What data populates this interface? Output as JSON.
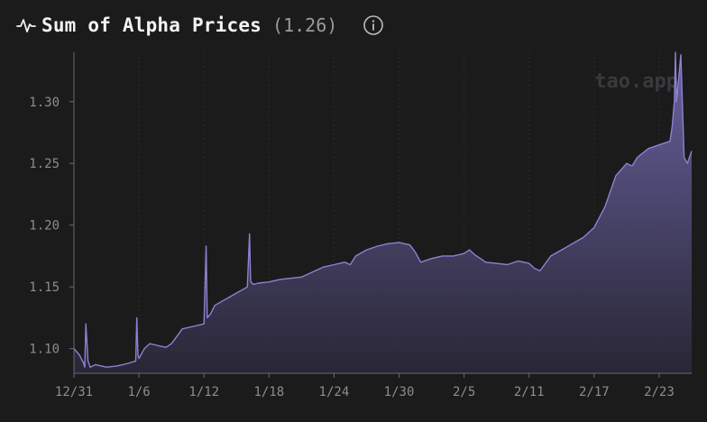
{
  "header": {
    "title": "Sum of Alpha Prices",
    "current_value": "(1.26)"
  },
  "watermark": "tao.app",
  "colors": {
    "background": "#1b1b1c",
    "line": "#8c82d2",
    "area_top": "#6e66a8",
    "area_bottom": "#2a2838",
    "axis_text": "#8d8d92",
    "grid": "#2c2c2f"
  },
  "chart_data": {
    "type": "area",
    "title": "Sum of Alpha Prices",
    "xlabel": "",
    "ylabel": "",
    "x_tick_labels": [
      "12/31",
      "1/6",
      "1/12",
      "1/18",
      "1/24",
      "1/30",
      "2/5",
      "2/11",
      "2/17",
      "2/23"
    ],
    "y_tick_labels": [
      "1.10",
      "1.15",
      "1.20",
      "1.25",
      "1.30"
    ],
    "y_ticks": [
      1.1,
      1.15,
      1.2,
      1.25,
      1.3
    ],
    "ylim": [
      1.08,
      1.34
    ],
    "xlim_days": [
      0,
      57
    ],
    "grid": "vertical dotted",
    "series": [
      {
        "x_days": [
          0,
          0.5,
          0.9,
          1.0,
          1.1,
          1.3,
          1.5,
          2,
          3,
          4,
          5,
          5.7,
          5.8,
          5.9,
          6,
          6.5,
          7,
          7.5,
          8,
          8.5,
          9,
          9.5,
          10,
          11,
          12,
          12.2,
          12.3,
          12.4,
          12.6,
          13,
          14,
          15,
          16,
          16.2,
          16.3,
          16.4,
          16.6,
          17,
          18,
          19,
          20,
          21,
          22,
          23,
          23.5,
          24,
          25,
          25.5,
          26,
          27,
          28,
          29,
          30,
          31,
          31.5,
          32,
          33,
          34,
          35,
          36,
          36.5,
          37,
          38,
          39,
          40,
          41,
          42,
          42.5,
          43,
          44,
          45,
          46,
          47,
          48,
          49,
          50,
          50.5,
          51,
          51.5,
          52,
          53,
          54,
          55,
          55.2,
          55.4,
          55.5,
          55.6,
          56,
          56.3,
          56.6,
          57
        ],
        "values": [
          1.1,
          1.095,
          1.088,
          1.085,
          1.12,
          1.09,
          1.085,
          1.087,
          1.085,
          1.086,
          1.088,
          1.09,
          1.125,
          1.095,
          1.092,
          1.1,
          1.104,
          1.103,
          1.102,
          1.101,
          1.104,
          1.11,
          1.116,
          1.118,
          1.12,
          1.183,
          1.125,
          1.126,
          1.128,
          1.135,
          1.14,
          1.145,
          1.15,
          1.193,
          1.155,
          1.153,
          1.152,
          1.153,
          1.154,
          1.156,
          1.157,
          1.158,
          1.162,
          1.166,
          1.167,
          1.168,
          1.17,
          1.168,
          1.175,
          1.18,
          1.183,
          1.185,
          1.186,
          1.184,
          1.178,
          1.17,
          1.173,
          1.175,
          1.175,
          1.177,
          1.18,
          1.176,
          1.17,
          1.169,
          1.168,
          1.171,
          1.169,
          1.165,
          1.163,
          1.175,
          1.18,
          1.185,
          1.19,
          1.198,
          1.215,
          1.24,
          1.245,
          1.25,
          1.248,
          1.255,
          1.262,
          1.265,
          1.268,
          1.28,
          1.3,
          1.34,
          1.3,
          1.338,
          1.255,
          1.25,
          1.26
        ]
      }
    ]
  }
}
